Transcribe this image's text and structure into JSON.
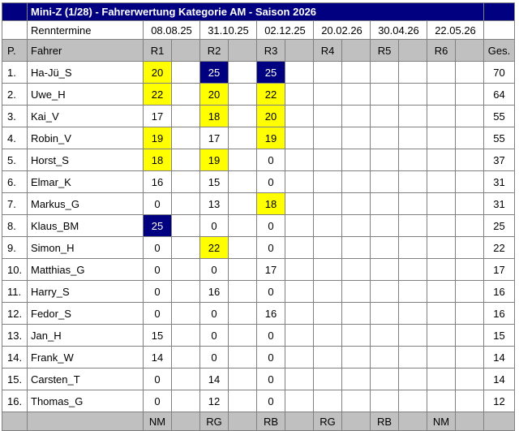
{
  "title": "Mini-Z (1/28) - Fahrerwertung Kategorie AM - Saison 2026",
  "schedule": {
    "label": "Renntermine",
    "dates": [
      "08.08.25",
      "31.10.25",
      "02.12.25",
      "20.02.26",
      "30.04.26",
      "22.05.26"
    ]
  },
  "header": {
    "pos": "P.",
    "driver": "Fahrer",
    "races": [
      "R1",
      "R2",
      "R3",
      "R4",
      "R5",
      "R6"
    ],
    "total": "Ges."
  },
  "standings": [
    {
      "pos": "1.",
      "driver": "Ha-Jü_S",
      "results": [
        {
          "v": "20",
          "hl": "yellow"
        },
        {
          "v": "25",
          "hl": "navy"
        },
        {
          "v": "25",
          "hl": "navy"
        },
        null,
        null,
        null
      ],
      "total": "70"
    },
    {
      "pos": "2.",
      "driver": "Uwe_H",
      "results": [
        {
          "v": "22",
          "hl": "yellow"
        },
        {
          "v": "20",
          "hl": "yellow"
        },
        {
          "v": "22",
          "hl": "yellow"
        },
        null,
        null,
        null
      ],
      "total": "64"
    },
    {
      "pos": "3.",
      "driver": "Kai_V",
      "results": [
        {
          "v": "17",
          "hl": "none"
        },
        {
          "v": "18",
          "hl": "yellow"
        },
        {
          "v": "20",
          "hl": "yellow"
        },
        null,
        null,
        null
      ],
      "total": "55"
    },
    {
      "pos": "4.",
      "driver": "Robin_V",
      "results": [
        {
          "v": "19",
          "hl": "yellow"
        },
        {
          "v": "17",
          "hl": "none"
        },
        {
          "v": "19",
          "hl": "yellow"
        },
        null,
        null,
        null
      ],
      "total": "55"
    },
    {
      "pos": "5.",
      "driver": "Horst_S",
      "results": [
        {
          "v": "18",
          "hl": "yellow"
        },
        {
          "v": "19",
          "hl": "yellow"
        },
        {
          "v": "0",
          "hl": "none"
        },
        null,
        null,
        null
      ],
      "total": "37"
    },
    {
      "pos": "6.",
      "driver": "Elmar_K",
      "results": [
        {
          "v": "16",
          "hl": "none"
        },
        {
          "v": "15",
          "hl": "none"
        },
        {
          "v": "0",
          "hl": "none"
        },
        null,
        null,
        null
      ],
      "total": "31"
    },
    {
      "pos": "7.",
      "driver": "Markus_G",
      "results": [
        {
          "v": "0",
          "hl": "none"
        },
        {
          "v": "13",
          "hl": "none"
        },
        {
          "v": "18",
          "hl": "yellow"
        },
        null,
        null,
        null
      ],
      "total": "31"
    },
    {
      "pos": "8.",
      "driver": "Klaus_BM",
      "results": [
        {
          "v": "25",
          "hl": "navy"
        },
        {
          "v": "0",
          "hl": "none"
        },
        {
          "v": "0",
          "hl": "none"
        },
        null,
        null,
        null
      ],
      "total": "25"
    },
    {
      "pos": "9.",
      "driver": "Simon_H",
      "results": [
        {
          "v": "0",
          "hl": "none"
        },
        {
          "v": "22",
          "hl": "yellow"
        },
        {
          "v": "0",
          "hl": "none"
        },
        null,
        null,
        null
      ],
      "total": "22"
    },
    {
      "pos": "10.",
      "driver": "Matthias_G",
      "results": [
        {
          "v": "0",
          "hl": "none"
        },
        {
          "v": "0",
          "hl": "none"
        },
        {
          "v": "17",
          "hl": "none"
        },
        null,
        null,
        null
      ],
      "total": "17"
    },
    {
      "pos": "11.",
      "driver": "Harry_S",
      "results": [
        {
          "v": "0",
          "hl": "none"
        },
        {
          "v": "16",
          "hl": "none"
        },
        {
          "v": "0",
          "hl": "none"
        },
        null,
        null,
        null
      ],
      "total": "16"
    },
    {
      "pos": "12.",
      "driver": "Fedor_S",
      "results": [
        {
          "v": "0",
          "hl": "none"
        },
        {
          "v": "0",
          "hl": "none"
        },
        {
          "v": "16",
          "hl": "none"
        },
        null,
        null,
        null
      ],
      "total": "16"
    },
    {
      "pos": "13.",
      "driver": "Jan_H",
      "results": [
        {
          "v": "15",
          "hl": "none"
        },
        {
          "v": "0",
          "hl": "none"
        },
        {
          "v": "0",
          "hl": "none"
        },
        null,
        null,
        null
      ],
      "total": "15"
    },
    {
      "pos": "14.",
      "driver": "Frank_W",
      "results": [
        {
          "v": "14",
          "hl": "none"
        },
        {
          "v": "0",
          "hl": "none"
        },
        {
          "v": "0",
          "hl": "none"
        },
        null,
        null,
        null
      ],
      "total": "14"
    },
    {
      "pos": "15.",
      "driver": "Carsten_T",
      "results": [
        {
          "v": "0",
          "hl": "none"
        },
        {
          "v": "14",
          "hl": "none"
        },
        {
          "v": "0",
          "hl": "none"
        },
        null,
        null,
        null
      ],
      "total": "14"
    },
    {
      "pos": "16.",
      "driver": "Thomas_G",
      "results": [
        {
          "v": "0",
          "hl": "none"
        },
        {
          "v": "12",
          "hl": "none"
        },
        {
          "v": "0",
          "hl": "none"
        },
        null,
        null,
        null
      ],
      "total": "12"
    }
  ],
  "footer": {
    "race_status": [
      "NM",
      "RG",
      "RB",
      "RG",
      "RB",
      "NM"
    ]
  },
  "colors": {
    "navy": "#000080",
    "yellow": "#FFFF00",
    "header_gray": "#C0C0C0",
    "border": "#808080",
    "highlight_text": "#FFFFFF"
  }
}
